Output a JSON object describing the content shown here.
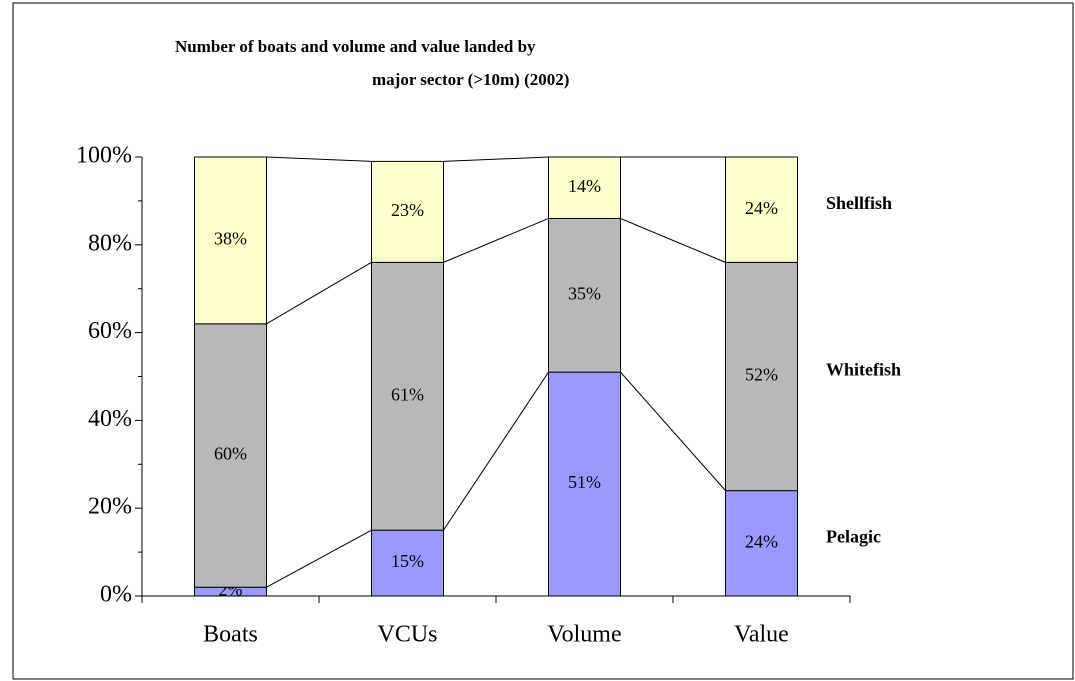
{
  "chart_data": {
    "type": "stacked_bar",
    "title": [
      "Number of boats and volume and value landed by",
      "major sector (>10m) (2002)"
    ],
    "categories": [
      "Boats",
      "VCUs",
      "Volume",
      "Value"
    ],
    "series": [
      {
        "name": "Pelagic",
        "color": "#9999ff",
        "values": [
          2,
          15,
          51,
          24
        ],
        "value_labels": [
          "2%",
          "15%",
          "51%",
          "24%"
        ]
      },
      {
        "name": "Whitefish",
        "color": "#b8b8b8",
        "values": [
          60,
          61,
          35,
          52
        ],
        "value_labels": [
          "60%",
          "61%",
          "35%",
          "52%"
        ]
      },
      {
        "name": "Shellfish",
        "color": "#ffffcc",
        "values": [
          38,
          23,
          14,
          24
        ],
        "value_labels": [
          "38%",
          "23%",
          "14%",
          "24%"
        ]
      }
    ],
    "ylim": [
      0,
      100
    ],
    "yticks": [
      {
        "value": 0,
        "label": "0%"
      },
      {
        "value": 20,
        "label": "20%"
      },
      {
        "value": 40,
        "label": "40%"
      },
      {
        "value": 60,
        "label": "60%"
      },
      {
        "value": 80,
        "label": "80%"
      },
      {
        "value": 100,
        "label": "100%"
      }
    ],
    "series_lines": true
  }
}
